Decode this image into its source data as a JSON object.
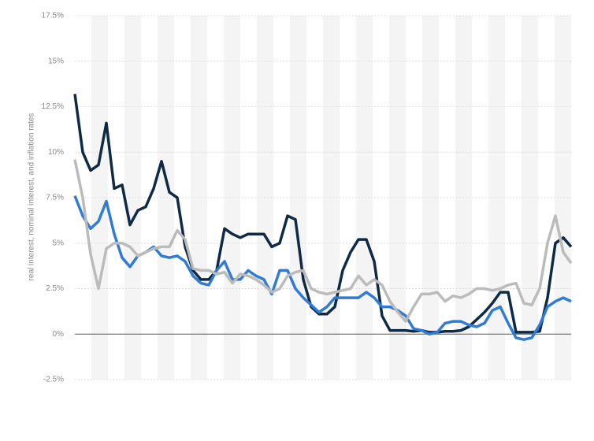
{
  "chart_data": {
    "type": "line",
    "y_label": "real interest, nominal interest, and inflation rates",
    "ylim": [
      -2.5,
      17.5
    ],
    "yticks": [
      {
        "value": -2.5,
        "label": "-2.5%"
      },
      {
        "value": 0,
        "label": "0%"
      },
      {
        "value": 2.5,
        "label": "2.5%"
      },
      {
        "value": 5,
        "label": "5%"
      },
      {
        "value": 7.5,
        "label": "7.5%"
      },
      {
        "value": 10,
        "label": "10%"
      },
      {
        "value": 12.5,
        "label": "12.5%"
      },
      {
        "value": 15,
        "label": "15%"
      },
      {
        "value": 17.5,
        "label": "17.5%"
      }
    ],
    "grid": true,
    "series": [
      {
        "color": "#0f2a47",
        "values": [
          13.2,
          10,
          9,
          9.3,
          11.6,
          8,
          8.2,
          6,
          6.8,
          7,
          8,
          9.5,
          7.8,
          7.5,
          4.8,
          3.5,
          3,
          3,
          3.5,
          5.8,
          5.5,
          5.3,
          5.5,
          5.5,
          5.5,
          4.8,
          5,
          6.5,
          6.3,
          3,
          1.5,
          1.1,
          1.1,
          1.5,
          3.5,
          4.5,
          5.2,
          5.2,
          4,
          1,
          0.2,
          0.2,
          0.2,
          0.15,
          0.2,
          0.1,
          0.1,
          0.15,
          0.15,
          0.2,
          0.4,
          0.8,
          1.2,
          1.7,
          2.3,
          2.3,
          0.1,
          0.1,
          0.1,
          0.15,
          2,
          5,
          5.3,
          4.8
        ]
      },
      {
        "color": "#2f7bd6",
        "values": [
          7.6,
          6.5,
          5.8,
          6.2,
          7.3,
          5.5,
          4.2,
          3.7,
          4.3,
          4.5,
          4.8,
          4.3,
          4.2,
          4.3,
          4,
          3.2,
          2.8,
          2.7,
          3.5,
          4,
          3,
          3,
          3.5,
          3.2,
          3,
          2.2,
          3.5,
          3.5,
          2.5,
          2,
          1.6,
          1.2,
          1.5,
          2,
          2,
          2,
          2,
          2.3,
          2,
          1.5,
          1.5,
          1.3,
          1,
          0.3,
          0.2,
          0,
          0.1,
          0.6,
          0.7,
          0.7,
          0.5,
          0.4,
          0.6,
          1.3,
          1.5,
          0.6,
          -0.2,
          -0.3,
          -0.2,
          0.5,
          1.5,
          1.8,
          2,
          1.8
        ]
      },
      {
        "color": "#bbbbbb",
        "values": [
          9.6,
          7.5,
          4.4,
          2.5,
          4.7,
          5,
          5,
          4.8,
          4.3,
          4.5,
          4.7,
          4.8,
          4.8,
          5.7,
          5.2,
          3.6,
          3.5,
          3.5,
          3.3,
          3.4,
          2.8,
          3.3,
          3.2,
          3,
          2.7,
          2.3,
          2.5,
          3.2,
          3.4,
          3.5,
          2.5,
          2.3,
          2.2,
          2.3,
          2.4,
          2.5,
          3.2,
          2.7,
          3,
          2.7,
          1.8,
          1.2,
          0.7,
          1.5,
          2.2,
          2.2,
          2.3,
          1.8,
          2.1,
          2,
          2.2,
          2.5,
          2.5,
          2.4,
          2.5,
          2.7,
          2.8,
          1.7,
          1.6,
          2.5,
          5,
          6.5,
          4.5,
          3.9
        ]
      }
    ]
  }
}
